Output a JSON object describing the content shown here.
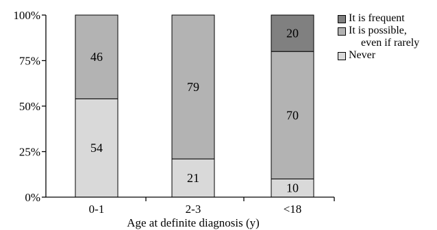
{
  "chart_data": {
    "type": "bar",
    "stacked": true,
    "percent": true,
    "categories": [
      "0-1",
      "2-3",
      "<18"
    ],
    "series": [
      {
        "name": "Never",
        "values": [
          54,
          21,
          10
        ],
        "color": "#d9d9d9"
      },
      {
        "name": "It is possible, even if rarely",
        "values": [
          46,
          79,
          70
        ],
        "color": "#b3b3b3"
      },
      {
        "name": "It is frequent",
        "values": [
          0,
          0,
          20
        ],
        "color": "#808080"
      }
    ],
    "xlabel": "Age at definite diagnosis (y)",
    "ylabel": "",
    "ylim": [
      0,
      100
    ],
    "yticks": [
      "0%",
      "25%",
      "50%",
      "75%",
      "100%"
    ],
    "legend_position": "top-right",
    "grid": false
  },
  "legend": [
    {
      "line1": "It is frequent",
      "line2": "",
      "color": "#808080"
    },
    {
      "line1": "It is possible,",
      "line2": "even if rarely",
      "color": "#b3b3b3"
    },
    {
      "line1": "Never",
      "line2": "",
      "color": "#d9d9d9"
    }
  ]
}
